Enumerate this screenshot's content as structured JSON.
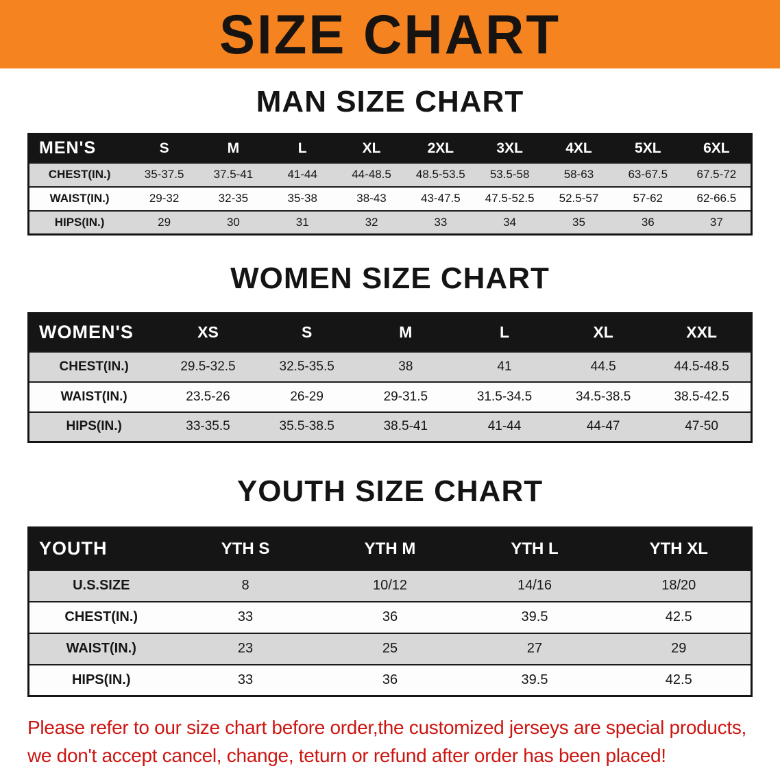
{
  "banner": {
    "title": "SIZE CHART"
  },
  "colors": {
    "banner_bg": "#f5831f",
    "table_header_bg": "#151515",
    "row_stripe_gray": "#d8d8d8",
    "disclaimer_red": "#cc1510"
  },
  "sections": [
    {
      "heading": "MAN SIZE CHART",
      "table": {
        "header": [
          "MEN'S",
          "S",
          "M",
          "L",
          "XL",
          "2XL",
          "3XL",
          "4XL",
          "5XL",
          "6XL"
        ],
        "rows": [
          {
            "label": "CHEST(IN.)",
            "values": [
              "35-37.5",
              "37.5-41",
              "41-44",
              "44-48.5",
              "48.5-53.5",
              "53.5-58",
              "58-63",
              "63-67.5",
              "67.5-72"
            ]
          },
          {
            "label": "WAIST(IN.)",
            "values": [
              "29-32",
              "32-35",
              "35-38",
              "38-43",
              "43-47.5",
              "47.5-52.5",
              "52.5-57",
              "57-62",
              "62-66.5"
            ]
          },
          {
            "label": "HIPS(IN.)",
            "values": [
              "29",
              "30",
              "31",
              "32",
              "33",
              "34",
              "35",
              "36",
              "37"
            ]
          }
        ]
      }
    },
    {
      "heading": "WOMEN SIZE CHART",
      "table": {
        "header": [
          "WOMEN'S",
          "XS",
          "S",
          "M",
          "L",
          "XL",
          "XXL"
        ],
        "rows": [
          {
            "label": "CHEST(IN.)",
            "values": [
              "29.5-32.5",
              "32.5-35.5",
              "38",
              "41",
              "44.5",
              "44.5-48.5"
            ]
          },
          {
            "label": "WAIST(IN.)",
            "values": [
              "23.5-26",
              "26-29",
              "29-31.5",
              "31.5-34.5",
              "34.5-38.5",
              "38.5-42.5"
            ]
          },
          {
            "label": "HIPS(IN.)",
            "values": [
              "33-35.5",
              "35.5-38.5",
              "38.5-41",
              "41-44",
              "44-47",
              "47-50"
            ]
          }
        ]
      }
    },
    {
      "heading": "YOUTH SIZE CHART",
      "table": {
        "header": [
          "YOUTH",
          "YTH S",
          "YTH M",
          "YTH L",
          "YTH XL"
        ],
        "rows": [
          {
            "label": "U.S.SIZE",
            "values": [
              "8",
              "10/12",
              "14/16",
              "18/20"
            ]
          },
          {
            "label": "CHEST(IN.)",
            "values": [
              "33",
              "36",
              "39.5",
              "42.5"
            ]
          },
          {
            "label": "WAIST(IN.)",
            "values": [
              "23",
              "25",
              "27",
              "29"
            ]
          },
          {
            "label": "HIPS(IN.)",
            "values": [
              "33",
              "36",
              "39.5",
              "42.5"
            ]
          }
        ]
      }
    }
  ],
  "footer": {
    "line1": "Please refer to our size chart before order,the customized jerseys are special products,",
    "line2": "we don't accept cancel, change, teturn or refund after order has been placed!"
  }
}
